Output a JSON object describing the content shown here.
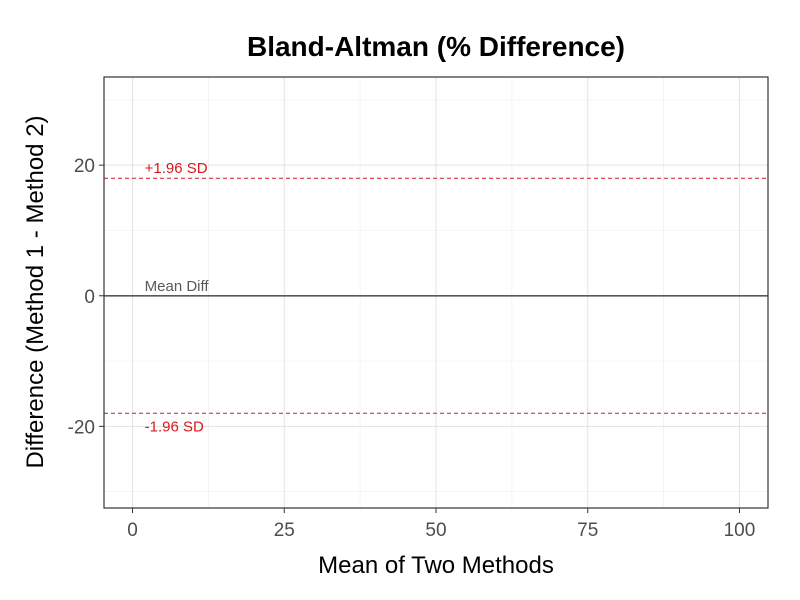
{
  "chart_data": {
    "type": "scatter",
    "title": "Bland-Altman (% Difference)",
    "xlabel": "Mean of Two Methods",
    "ylabel": "Difference (Method 1 - Method 2)",
    "xlim": [
      -4.7,
      104.7
    ],
    "ylim": [
      -32.5,
      33.5
    ],
    "x_ticks": [
      0,
      25,
      50,
      75,
      100
    ],
    "y_ticks": [
      -20,
      0,
      20
    ],
    "grid": true,
    "points": [],
    "reference_lines": [
      {
        "label": "Mean Diff",
        "y": 0,
        "color": "#595959",
        "style": "solid"
      },
      {
        "label": "+1.96 SD",
        "y": 18,
        "color": "#d7191c",
        "style": "dashed"
      },
      {
        "label": "-1.96 SD",
        "y": -18,
        "color": "#d7191c",
        "style": "dashed"
      }
    ]
  }
}
